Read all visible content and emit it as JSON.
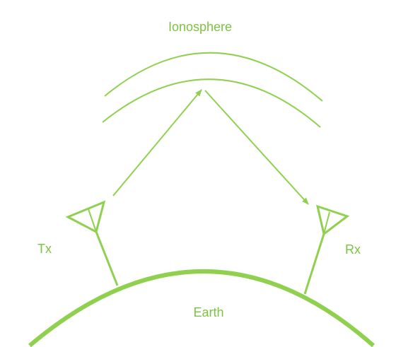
{
  "diagram": {
    "title": "Ionosphere",
    "transmitter_label": "Tx",
    "receiver_label": "Rx",
    "ground_label": "Earth"
  },
  "colors": {
    "line": "#8fd14f",
    "text": "#7dc242"
  }
}
